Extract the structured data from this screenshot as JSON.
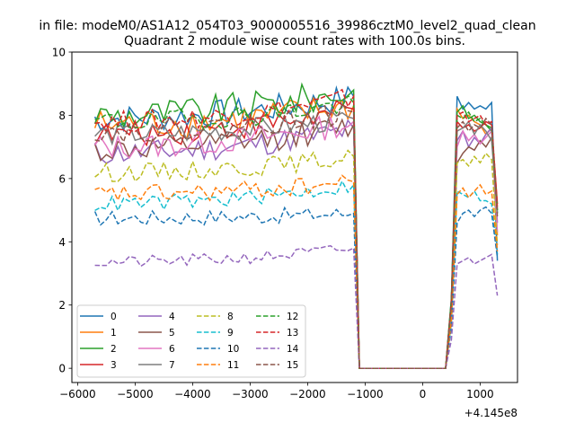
{
  "figure": {
    "suptitle": "in file: modeM0/AS1A12_054T03_9000005516_39986cztM0_level2_quad_clean",
    "offset_label": "+4.145e8"
  },
  "chart_data": {
    "type": "line",
    "title": "Quadrant 2 module wise count rates with 100.0s bins.",
    "xlabel": "",
    "ylabel": "",
    "xlim": [
      -6100,
      1650
    ],
    "ylim": [
      -0.45,
      10.0
    ],
    "x_offset": 414500000,
    "xticks": [
      -6000,
      -5000,
      -4000,
      -3000,
      -2000,
      -1000,
      0,
      1000
    ],
    "xtick_labels": [
      "−6000",
      "−5000",
      "−4000",
      "−3000",
      "−2000",
      "−1000",
      "0",
      "1000"
    ],
    "yticks": [
      0,
      2,
      4,
      6,
      8,
      10
    ],
    "ytick_labels": [
      "0",
      "2",
      "4",
      "6",
      "8",
      "10"
    ],
    "grid": false,
    "legend": {
      "placement": "lower-left",
      "columns": 4
    },
    "x_start": -5700,
    "x_step": 100,
    "gap_x": [
      -1100,
      400
    ],
    "post_gap_x": [
      500,
      600,
      700,
      800,
      900,
      1000,
      1100,
      1200,
      1300
    ],
    "series": [
      {
        "name": "0",
        "color": "#1f77b4",
        "style": "solid",
        "base": 7.9,
        "noise": 0.45,
        "pre_end": 8.6,
        "post": [
          2.2,
          8.6,
          8.2,
          8.4,
          8.2,
          8.3,
          8.2,
          8.4,
          3.4
        ]
      },
      {
        "name": "1",
        "color": "#ff7f0e",
        "style": "solid",
        "base": 7.7,
        "noise": 0.5,
        "pre_end": 8.3,
        "post": [
          2.1,
          8.2,
          7.9,
          8.0,
          7.8,
          7.7,
          7.4,
          7.6,
          4.2
        ]
      },
      {
        "name": "2",
        "color": "#2ca02c",
        "style": "solid",
        "base": 8.0,
        "noise": 0.5,
        "pre_end": 8.8,
        "post": [
          2.2,
          8.1,
          8.3,
          7.9,
          8.0,
          7.8,
          7.7,
          7.5,
          4.9
        ]
      },
      {
        "name": "3",
        "color": "#d62728",
        "style": "solid",
        "base": 7.4,
        "noise": 0.4,
        "pre_end": 8.2,
        "post": [
          2.0,
          7.8,
          7.6,
          7.7,
          7.5,
          7.6,
          7.8,
          7.7,
          5.2
        ]
      },
      {
        "name": "4",
        "color": "#9467bd",
        "style": "solid",
        "base": 6.8,
        "noise": 0.4,
        "pre_end": 7.6,
        "post": [
          1.9,
          7.2,
          7.5,
          7.0,
          7.3,
          7.1,
          7.4,
          7.6,
          4.6
        ]
      },
      {
        "name": "5",
        "color": "#8c564b",
        "style": "solid",
        "base": 6.9,
        "noise": 0.4,
        "pre_end": 7.7,
        "post": [
          1.9,
          6.5,
          6.8,
          7.0,
          6.9,
          7.2,
          7.0,
          7.3,
          5.0
        ]
      },
      {
        "name": "6",
        "color": "#e377c2",
        "style": "solid",
        "base": 7.0,
        "noise": 0.4,
        "pre_end": 7.8,
        "post": [
          1.9,
          7.0,
          7.5,
          7.2,
          7.4,
          7.1,
          7.3,
          7.5,
          4.3
        ]
      },
      {
        "name": "7",
        "color": "#7f7f7f",
        "style": "solid",
        "base": 7.4,
        "noise": 0.35,
        "pre_end": 7.9,
        "post": [
          2.0,
          7.5,
          7.6,
          7.8,
          7.4,
          7.7,
          7.5,
          7.2,
          4.9
        ]
      },
      {
        "name": "8",
        "color": "#bcbd22",
        "style": "dashed",
        "base": 6.2,
        "noise": 0.3,
        "pre_end": 6.7,
        "post": [
          1.7,
          6.5,
          6.6,
          6.4,
          6.7,
          6.5,
          6.8,
          6.6,
          3.9
        ]
      },
      {
        "name": "9",
        "color": "#17becf",
        "style": "dashed",
        "base": 5.2,
        "noise": 0.25,
        "pre_end": 5.8,
        "post": [
          1.4,
          5.6,
          5.5,
          5.4,
          5.6,
          5.3,
          5.3,
          5.2,
          3.6
        ]
      },
      {
        "name": "10",
        "color": "#1f77b4",
        "style": "dashed",
        "base": 4.75,
        "noise": 0.25,
        "pre_end": 4.9,
        "post": [
          1.3,
          4.6,
          4.9,
          5.0,
          4.8,
          5.0,
          5.1,
          4.9,
          3.5
        ]
      },
      {
        "name": "11",
        "color": "#ff7f0e",
        "style": "dashed",
        "base": 5.5,
        "noise": 0.3,
        "pre_end": 5.9,
        "post": [
          1.5,
          5.5,
          5.7,
          5.4,
          5.6,
          5.8,
          5.5,
          5.6,
          3.7
        ]
      },
      {
        "name": "12",
        "color": "#2ca02c",
        "style": "dashed",
        "base": 7.8,
        "noise": 0.35,
        "pre_end": 8.4,
        "post": [
          2.1,
          8.0,
          7.9,
          8.1,
          7.8,
          7.9,
          7.7,
          7.6,
          5.0
        ]
      },
      {
        "name": "13",
        "color": "#d62728",
        "style": "dashed",
        "base": 7.8,
        "noise": 0.35,
        "pre_end": 8.6,
        "post": [
          2.1,
          8.0,
          8.1,
          7.8,
          7.9,
          8.0,
          7.7,
          7.8,
          5.1
        ]
      },
      {
        "name": "14",
        "color": "#9467bd",
        "style": "dashed",
        "base": 3.35,
        "noise": 0.2,
        "pre_end": 3.8,
        "post": [
          0.9,
          3.3,
          3.4,
          3.5,
          3.3,
          3.4,
          3.5,
          3.6,
          2.3
        ]
      },
      {
        "name": "15",
        "color": "#8c564b",
        "style": "dashed",
        "base": 7.5,
        "noise": 0.35,
        "pre_end": 8.1,
        "post": [
          2.0,
          7.6,
          7.8,
          7.5,
          7.7,
          7.6,
          7.9,
          7.7,
          4.8
        ]
      }
    ]
  }
}
